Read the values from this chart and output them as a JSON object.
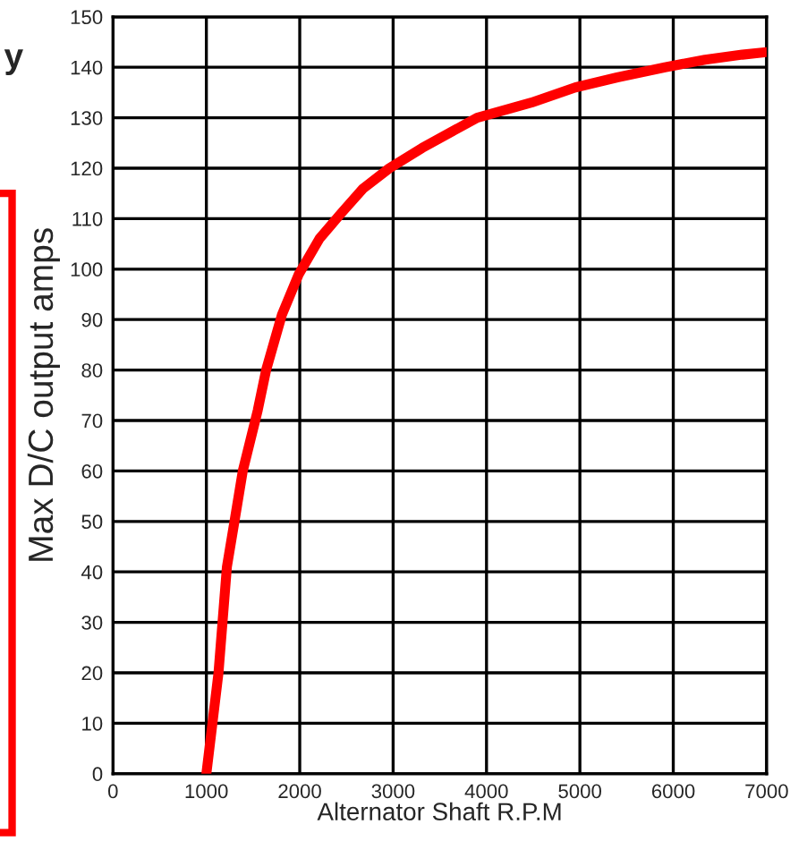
{
  "chart_data": {
    "type": "line",
    "xlabel": "Alternator Shaft R.P.M",
    "ylabel": "Max D/C output amps",
    "annotations": [
      "y"
    ],
    "series": [
      {
        "color": "#ff0000",
        "x": [
          1000,
          1130,
          1220,
          1310,
          1390,
          1550,
          1640,
          1810,
          1990,
          2210,
          2440,
          2680,
          2960,
          3310,
          3900,
          4480,
          4950,
          5400,
          5910,
          6340,
          6740,
          7000
        ],
        "values": [
          0,
          20,
          41,
          51,
          60,
          72,
          80,
          91,
          99,
          106,
          111,
          116,
          120,
          124,
          130,
          133,
          136,
          138,
          140,
          141.5,
          142.5,
          143
        ]
      }
    ],
    "xlim": [
      0,
      7000
    ],
    "xticks": [
      0,
      1000,
      2000,
      3000,
      4000,
      5000,
      6000,
      7000
    ],
    "ylim": [
      0,
      150
    ],
    "yticks": [
      0,
      10,
      20,
      30,
      40,
      50,
      60,
      70,
      80,
      90,
      100,
      110,
      120,
      130,
      140,
      150
    ],
    "grid": true,
    "marker": "none",
    "line_style": "solid"
  }
}
